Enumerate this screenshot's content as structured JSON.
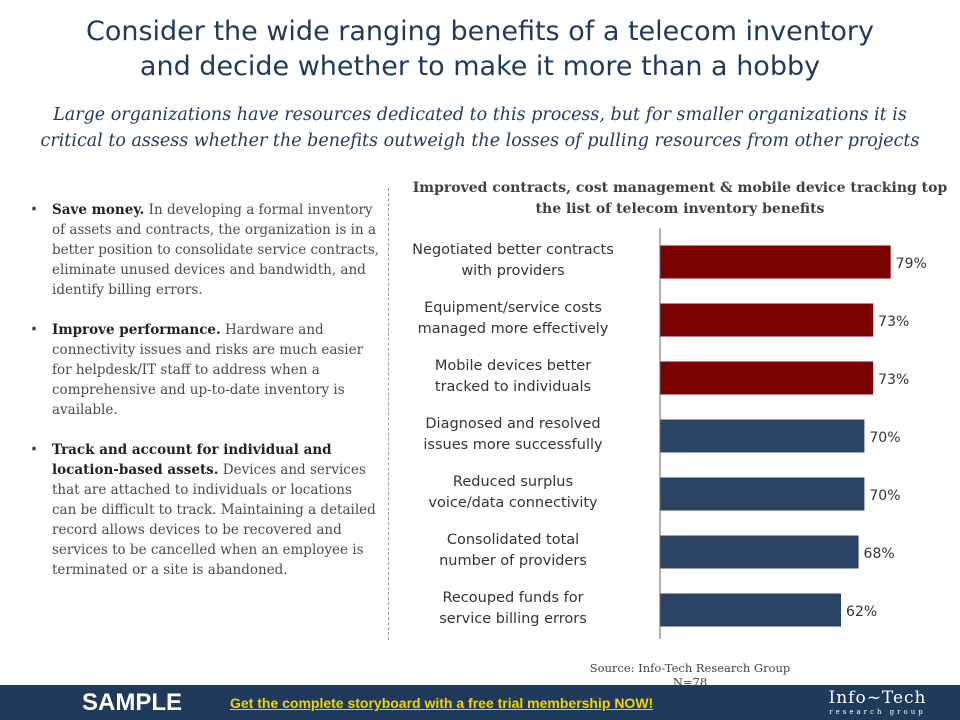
{
  "title_line1": "Consider the wide ranging benefits of a telecom inventory",
  "title_line2": "and decide whether to make it more than a hobby",
  "subtitle_line1": "Large organizations  have resources dedicated to this process, but for smaller organizations  it is",
  "subtitle_line2": "critical to assess whether the benefits outweigh  the losses of pulling  resources from other projects",
  "bullets": [
    {
      "bold": "Save money.",
      "text": " In developing a formal inventory of assets and contracts, the organization is in a better position to consolidate service contracts, eliminate unused devices and bandwidth, and identify billing errors."
    },
    {
      "bold": "Improve performance.",
      "text": " Hardware and connectivity issues and risks are much easier for helpdesk/IT staff to address when a comprehensive  and up-to-date inventory is available."
    },
    {
      "bold": "Track and account for individual and location-based assets.",
      "text": " Devices and services that are attached to individuals or locations can be difficult to track. Maintaining a detailed record allows devices to be recovered  and services to be cancelled when an employee is terminated or a site is abandoned."
    }
  ],
  "chart_data": {
    "type": "bar",
    "orientation": "horizontal",
    "title": "Improved contracts, cost management & mobile device tracking top the list of telecom inventory benefits",
    "categories": [
      [
        "Negotiated better contracts",
        "with providers"
      ],
      [
        "Equipment/service costs",
        "managed more effectively"
      ],
      [
        "Mobile devices better",
        "tracked to individuals"
      ],
      [
        "Diagnosed and resolved",
        "issues more successfully"
      ],
      [
        "Reduced surplus",
        "voice/data connectivity"
      ],
      [
        "Consolidated total",
        "number of providers"
      ],
      [
        "Recouped funds for",
        "service billing errors"
      ]
    ],
    "values": [
      79,
      73,
      73,
      70,
      70,
      68,
      62
    ],
    "value_labels": [
      "79%",
      "73%",
      "73%",
      "70%",
      "70%",
      "68%",
      "62%"
    ],
    "bar_colors": [
      "#7b0000",
      "#7b0000",
      "#7b0000",
      "#2b4466",
      "#2b4466",
      "#2b4466",
      "#2b4466"
    ],
    "xlim": [
      0,
      100
    ],
    "grid": false
  },
  "source_line1": "Source: Info-Tech Research Group",
  "source_line2": "N=78",
  "banner": {
    "sample_label": "SAMPLE",
    "cta_label": "Get the complete storyboard with a free trial membership NOW!",
    "logo_main": "Info~Tech",
    "logo_sub": "research group",
    "background": "#1f3a5a",
    "cta_color": "#f5d500"
  }
}
